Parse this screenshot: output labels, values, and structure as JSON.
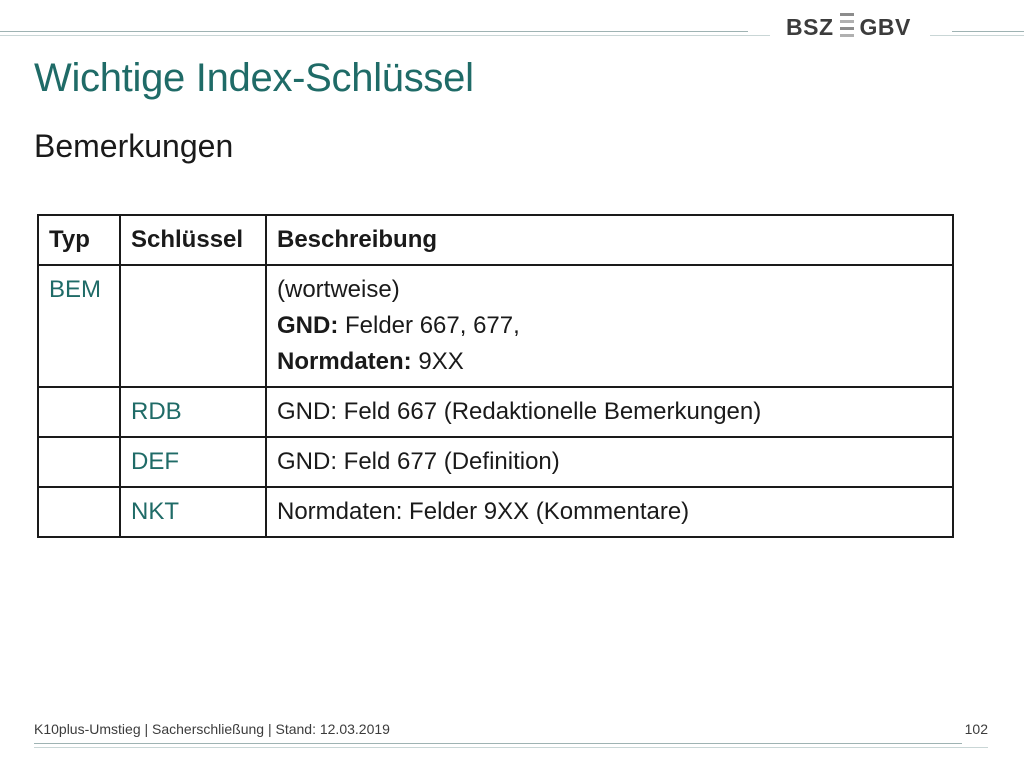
{
  "header": {
    "logo": {
      "left": "BSZ",
      "right": "GBV"
    }
  },
  "title": "Wichtige Index-Schlüssel",
  "subtitle": "Bemerkungen",
  "table": {
    "headers": [
      "Typ",
      "Schlüssel",
      "Beschreibung"
    ],
    "rows": [
      {
        "typ": "BEM",
        "schluessel": "",
        "beschreibung": {
          "line1": "(wortweise)",
          "line2_label": "GND:",
          "line2_text": " Felder 667, 677,",
          "line3_label": "Normdaten:",
          "line3_text": " 9XX"
        }
      },
      {
        "typ": "",
        "schluessel": "RDB",
        "beschreibung": "GND: Feld 667 (Redaktionelle Bemerkungen)"
      },
      {
        "typ": "",
        "schluessel": "DEF",
        "beschreibung": "GND: Feld 677 (Definition)"
      },
      {
        "typ": "",
        "schluessel": "NKT",
        "beschreibung": "Normdaten: Felder 9XX (Kommentare)"
      }
    ]
  },
  "footer": {
    "text": "K10plus-Umstieg | Sacherschließung | Stand: 12.03.2019",
    "page": "102"
  },
  "colors": {
    "accent": "#1f6b67",
    "rule": "#9fb3b3"
  }
}
